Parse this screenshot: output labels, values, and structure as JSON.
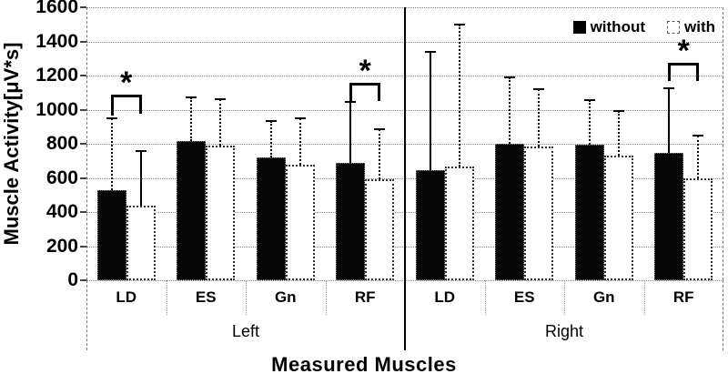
{
  "chart_data": {
    "type": "bar",
    "title": "",
    "xlabel": "Measured Muscles",
    "ylabel": "Muscle Activity[μV*s]",
    "ylim": [
      0,
      1600
    ],
    "yticks": [
      0,
      200,
      400,
      600,
      800,
      1000,
      1200,
      1400,
      1600
    ],
    "grid": true,
    "legend_position": "top-right-inside",
    "groups": [
      "Left",
      "Right"
    ],
    "categories": [
      "LD",
      "ES",
      "Gn",
      "RF"
    ],
    "series": [
      {
        "name": "without",
        "fill": "#000000",
        "values": {
          "Left": [
            530,
            815,
            720,
            690
          ],
          "Right": [
            645,
            800,
            795,
            745
          ]
        },
        "error_top": {
          "Left": [
            950,
            1070,
            935,
            1045
          ],
          "Right": [
            1340,
            1190,
            1055,
            1125
          ]
        },
        "error_line_style": {
          "Left": [
            "dashed",
            "dashed",
            "dashed",
            "solid"
          ],
          "Right": [
            "solid",
            "dashed",
            "dashed",
            "solid"
          ]
        }
      },
      {
        "name": "with",
        "fill": "#ffffff",
        "values": {
          "Left": [
            440,
            790,
            675,
            590
          ],
          "Right": [
            665,
            785,
            730,
            600
          ]
        },
        "error_top": {
          "Left": [
            760,
            1060,
            950,
            885
          ],
          "Right": [
            1500,
            1120,
            990,
            850
          ]
        },
        "error_line_style": {
          "Left": [
            "solid",
            "dashed",
            "dashed",
            "dashed"
          ],
          "Right": [
            "dashed",
            "dashed",
            "dashed",
            "dashed"
          ]
        }
      }
    ],
    "significance_markers": [
      {
        "group": "Left",
        "category": "LD",
        "label": "*",
        "bracket_y": 1090,
        "leg_end_left": 965,
        "leg_end_right": 975
      },
      {
        "group": "Left",
        "category": "RF",
        "label": "*",
        "bracket_y": 1160,
        "leg_end_left": 1050,
        "leg_end_right": 1050
      },
      {
        "group": "Right",
        "category": "RF",
        "label": "*",
        "bracket_y": 1275,
        "leg_end_left": 1170,
        "leg_end_right": 1170
      }
    ]
  }
}
